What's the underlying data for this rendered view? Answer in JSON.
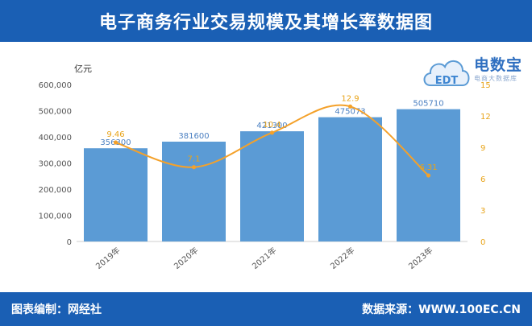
{
  "header": {
    "title": "电子商务行业交易规模及其增长率数据图"
  },
  "footer": {
    "left_text": "图表编制：网经社",
    "right_text": "数据来源：WWW.100EC.CN"
  },
  "logo": {
    "name": "电数宝",
    "badge": "EDT",
    "tagline": "电商大数据库"
  },
  "chart_data": {
    "type": "bar",
    "categories": [
      "2019年",
      "2020年",
      "2021年",
      "2022年",
      "2023年"
    ],
    "series": [
      {
        "type": "bar",
        "values": [
          356300,
          381600,
          421300,
          475073,
          505710
        ],
        "labels": [
          "356300",
          "381600",
          "421300",
          "475073",
          "505710"
        ]
      },
      {
        "type": "line",
        "values": [
          9.46,
          7.1,
          10.4,
          12.9,
          6.31
        ],
        "labels": [
          "9.46",
          "7.1",
          "10.4",
          "12.9",
          "6.31"
        ]
      }
    ],
    "y_left": {
      "unit": "亿元",
      "range": [
        0,
        600000
      ],
      "ticks": [
        "0",
        "100,000",
        "200,000",
        "300,000",
        "400,000",
        "500,000",
        "600,000"
      ]
    },
    "y_right": {
      "range": [
        0,
        15
      ],
      "ticks": [
        "0",
        "3",
        "6",
        "9",
        "12",
        "15"
      ]
    },
    "colors": {
      "bar": "#5b9bd5",
      "line": "#f4a12a",
      "bar_label": "#4a7fc1",
      "line_label": "#e8a317"
    },
    "grid": false
  }
}
